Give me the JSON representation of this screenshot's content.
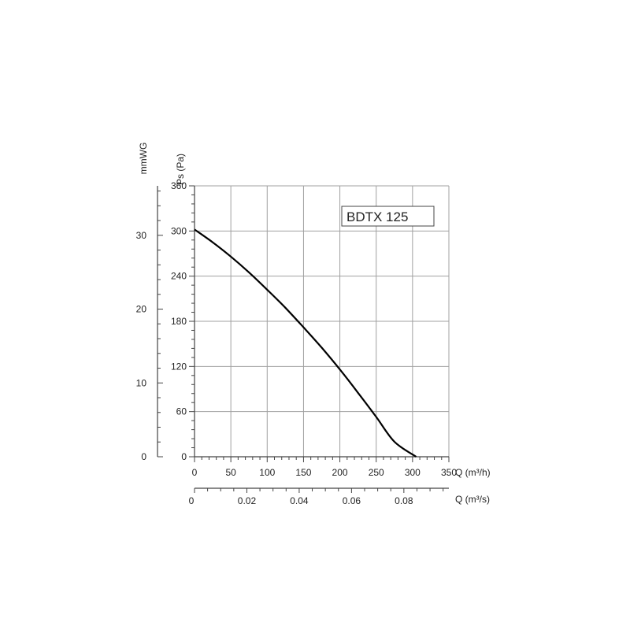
{
  "chart_data": {
    "type": "line",
    "title": "BDTX 125",
    "x_axis": {
      "label": "Q (m³/h)",
      "ticks": [
        0,
        50,
        100,
        150,
        200,
        250,
        300,
        350
      ],
      "range": [
        0,
        350
      ]
    },
    "x2_axis": {
      "label": "Q (m³/s)",
      "ticks": [
        0,
        0.02,
        0.04,
        0.06,
        0.08
      ],
      "tick_labels": [
        "0",
        "0.02",
        "0.04",
        "0.06",
        "0.08"
      ],
      "range": [
        0,
        0.0972
      ]
    },
    "y_axis": {
      "label": "Ps (Pa)",
      "ticks": [
        0,
        60,
        120,
        180,
        240,
        300,
        360
      ],
      "range": [
        0,
        360
      ]
    },
    "y2_axis": {
      "label": "mmWG",
      "ticks": [
        0,
        10,
        20,
        30
      ],
      "range": [
        0,
        36.7
      ]
    },
    "grid": true,
    "series": [
      {
        "x": [
          0,
          25,
          50,
          75,
          100,
          125,
          150,
          175,
          200,
          225,
          250,
          275,
          305
        ],
        "y": [
          302,
          285,
          266,
          245,
          222,
          198,
          172,
          145,
          116,
          85,
          53,
          20,
          0
        ]
      }
    ]
  }
}
